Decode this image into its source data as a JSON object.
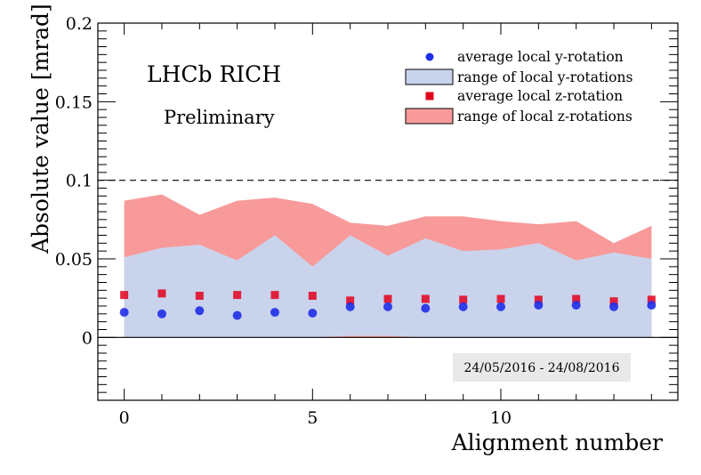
{
  "chart_data": {
    "type": "scatter",
    "title": "LHCb RICH",
    "subtitle": "Preliminary",
    "xlabel": "Alignment number",
    "ylabel": "Absolute value [mrad]",
    "xlim": [
      -0.7,
      14.7
    ],
    "ylim": [
      -0.04,
      0.2
    ],
    "x_ticks": [
      0,
      5,
      10
    ],
    "y_ticks": [
      0,
      0.05,
      0.1,
      0.15,
      0.2
    ],
    "y_tick_labels": [
      "0",
      "0.05",
      "0.1",
      "0.15",
      "0.2"
    ],
    "reference_line": 0.1,
    "zero_line": 0,
    "date_range": "24/05/2016 - 24/08/2016",
    "x": [
      0,
      1,
      2,
      3,
      4,
      5,
      6,
      7,
      8,
      9,
      10,
      11,
      12,
      13,
      14
    ],
    "series": [
      {
        "name": "range of local z-rotations",
        "kind": "band",
        "color": "#f89a9a",
        "lower": [
          0,
          0,
          0,
          0,
          0,
          0,
          0,
          0,
          0,
          0,
          0,
          0,
          0,
          0,
          0
        ],
        "upper": [
          0.087,
          0.091,
          0.078,
          0.087,
          0.089,
          0.085,
          0.073,
          0.071,
          0.077,
          0.077,
          0.074,
          0.072,
          0.074,
          0.06,
          0.071
        ]
      },
      {
        "name": "range of local y-rotations",
        "kind": "band",
        "color": "#c9d4ec",
        "lower": [
          0,
          0,
          0,
          0,
          0,
          0,
          0.001,
          0.001,
          0,
          0,
          0,
          0,
          0,
          0,
          0
        ],
        "upper": [
          0.051,
          0.057,
          0.059,
          0.049,
          0.065,
          0.045,
          0.065,
          0.052,
          0.063,
          0.055,
          0.056,
          0.06,
          0.049,
          0.054,
          0.05
        ]
      },
      {
        "name": "average local z-rotation",
        "kind": "points",
        "marker": "square",
        "color": "#e3001e",
        "values": [
          0.027,
          0.028,
          0.0265,
          0.027,
          0.027,
          0.0265,
          0.0235,
          0.0245,
          0.0245,
          0.024,
          0.0245,
          0.024,
          0.0245,
          0.023,
          0.024
        ]
      },
      {
        "name": "average local y-rotation",
        "kind": "points",
        "marker": "circle",
        "color": "#1f2ee8",
        "values": [
          0.016,
          0.015,
          0.017,
          0.014,
          0.016,
          0.0155,
          0.0195,
          0.0195,
          0.0185,
          0.0195,
          0.0195,
          0.0205,
          0.0205,
          0.0195,
          0.0205
        ]
      }
    ],
    "legend": [
      {
        "label": "average local y-rotation",
        "kind": "circle",
        "color": "#1f2ee8"
      },
      {
        "label": "range of local y-rotations",
        "kind": "box",
        "color": "#c9d4ec"
      },
      {
        "label": "average local z-rotation",
        "kind": "square",
        "color": "#e3001e"
      },
      {
        "label": "range of local z-rotations",
        "kind": "box",
        "color": "#f89a9a"
      }
    ]
  }
}
